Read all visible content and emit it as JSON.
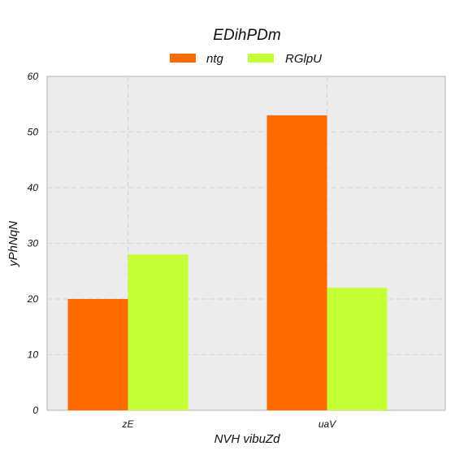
{
  "chart_data": {
    "type": "bar",
    "title": "EDihPDm",
    "xlabel": "NVH vibuZd",
    "ylabel": "yPhNqN",
    "categories": [
      "zE",
      "uaV"
    ],
    "series": [
      {
        "name": "ntg",
        "values": [
          20,
          53
        ],
        "color": "#ff6a00"
      },
      {
        "name": "RGlpU",
        "values": [
          28,
          22
        ],
        "color": "#c3ff33"
      }
    ],
    "ylim": [
      0,
      60
    ],
    "yticks": [
      0,
      10,
      20,
      30,
      40,
      50,
      60
    ],
    "grid": true,
    "legend": "top-center",
    "plot_background": "#ececec",
    "grid_color": "#d6d6d6"
  }
}
